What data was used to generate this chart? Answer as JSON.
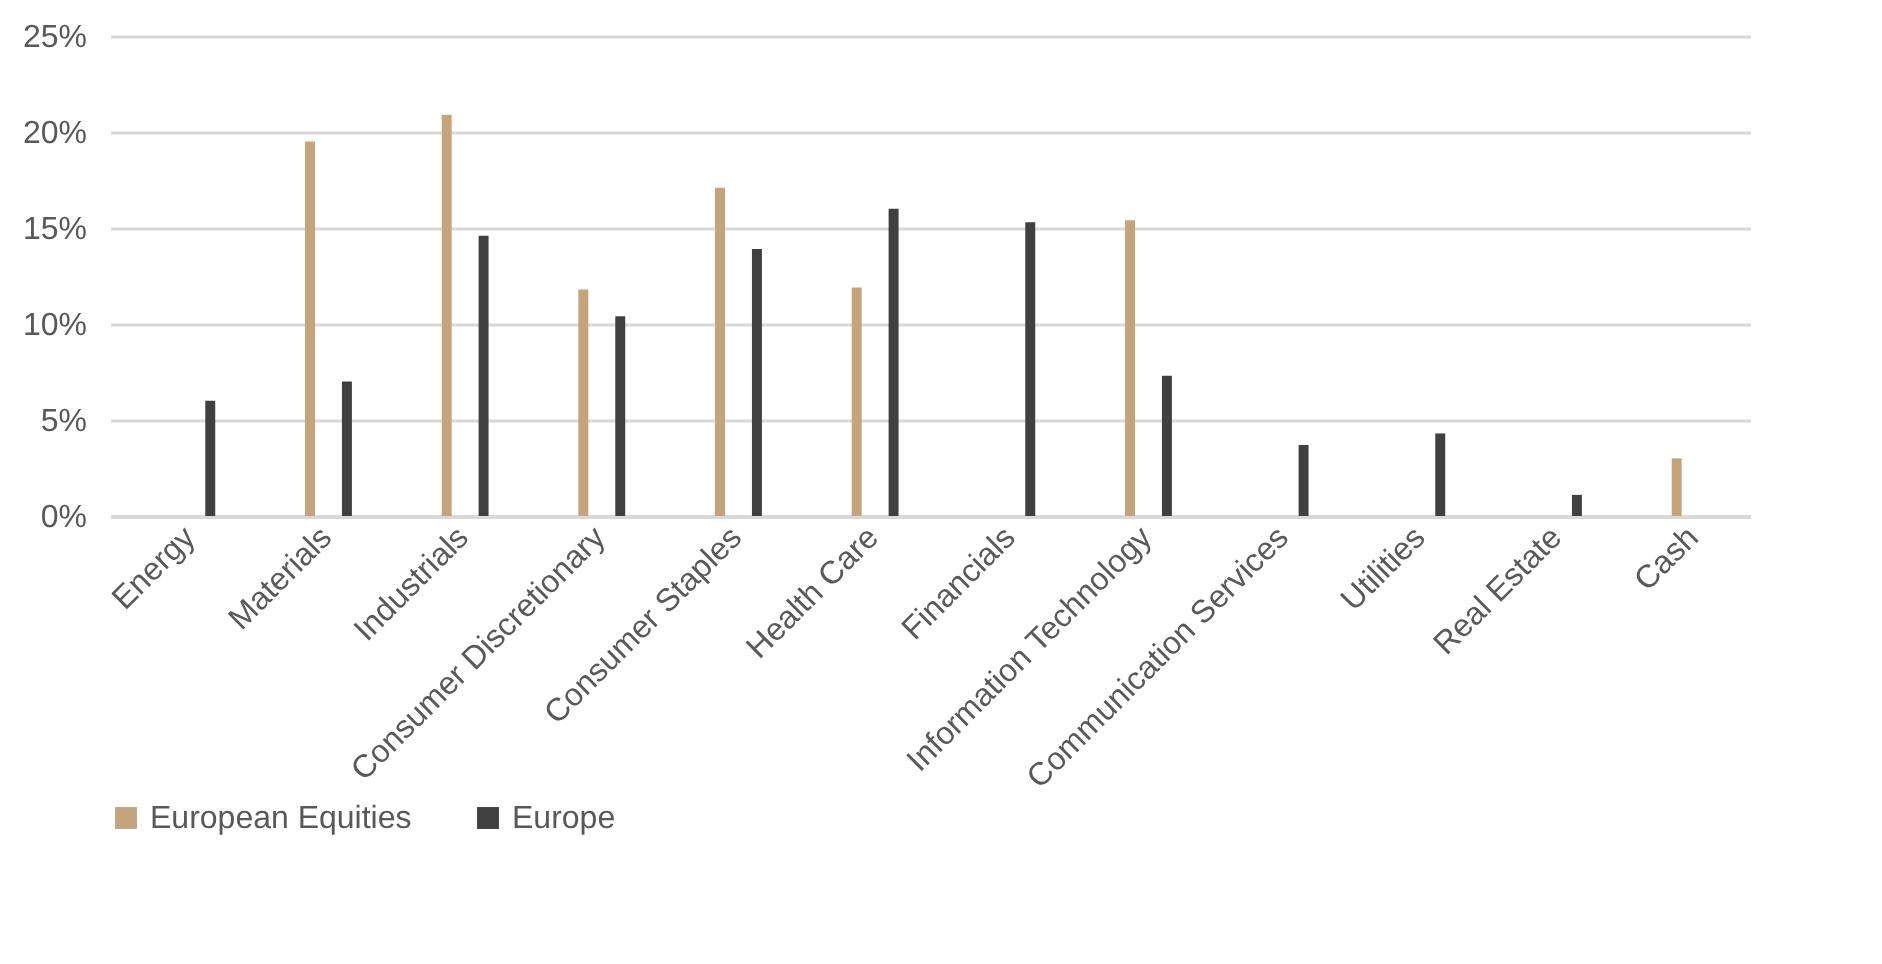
{
  "chart_data": {
    "type": "bar",
    "categories": [
      "Energy",
      "Materials",
      "Industrials",
      "Consumer Discretionary",
      "Consumer Staples",
      "Health Care",
      "Financials",
      "Information Technology",
      "Communication Services",
      "Utilities",
      "Real Estate",
      "Cash"
    ],
    "series": [
      {
        "name": "European Equities",
        "color": "#c4a47c",
        "values": [
          null,
          19.5,
          20.9,
          11.8,
          17.1,
          11.9,
          null,
          15.4,
          null,
          null,
          null,
          3.0
        ]
      },
      {
        "name": "Europe",
        "color": "#404040",
        "values": [
          6.0,
          7.0,
          14.6,
          10.4,
          13.9,
          16.0,
          15.3,
          7.3,
          3.7,
          4.3,
          1.1,
          null
        ]
      }
    ],
    "ylim": [
      0,
      25
    ],
    "yticks": [
      {
        "value": 0,
        "label": "0%"
      },
      {
        "value": 5,
        "label": "5%"
      },
      {
        "value": 10,
        "label": "10%"
      },
      {
        "value": 15,
        "label": "15%"
      },
      {
        "value": 20,
        "label": "20%"
      },
      {
        "value": 25,
        "label": "25%"
      }
    ],
    "grid": "y",
    "legend": "bottom"
  }
}
